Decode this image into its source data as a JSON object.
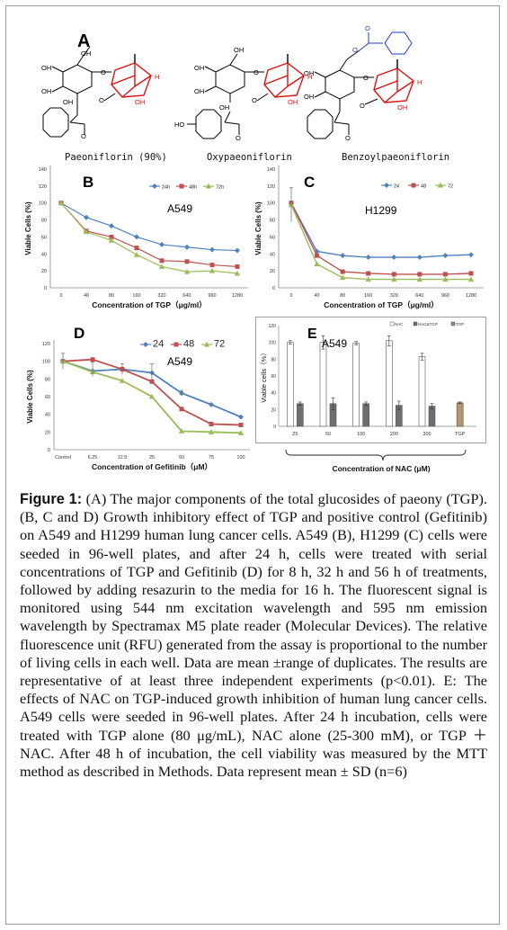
{
  "panelA": {
    "letter": "A",
    "compounds": [
      "Paeoniflorin (90%)",
      "Oxypaeoniflorin",
      "Benzoylpaeoniflorin"
    ],
    "atom_labels": {
      "oh": "OH",
      "ho": "HO",
      "o": "O",
      "h": "H"
    }
  },
  "chart_data": [
    {
      "id": "B",
      "type": "line",
      "letter": "B",
      "inset_label": "A549",
      "ylabel": "Viable Cells (%)",
      "xlabel": "Concentration of TGP（μg/ml）",
      "ylim": [
        0,
        140
      ],
      "yticks": [
        0,
        20,
        40,
        60,
        80,
        100,
        120,
        140
      ],
      "categories": [
        "0",
        "40",
        "80",
        "160",
        "320",
        "640",
        "960",
        "1280"
      ],
      "legend_position": "top-right",
      "series": [
        {
          "name": "24h",
          "color": "#4F81BD",
          "marker": "diamond",
          "values": [
            100,
            83,
            73,
            60,
            51,
            48,
            45,
            44
          ]
        },
        {
          "name": "48h",
          "color": "#C0504D",
          "marker": "square",
          "values": [
            100,
            67,
            60,
            47,
            32,
            31,
            27,
            25
          ]
        },
        {
          "name": "72h",
          "color": "#9BBB59",
          "marker": "triangle",
          "values": [
            100,
            66,
            56,
            39,
            25,
            19,
            20,
            17
          ]
        }
      ]
    },
    {
      "id": "C",
      "type": "line",
      "letter": "C",
      "inset_label": "H1299",
      "ylabel": "Viable Cells (%)",
      "xlabel": "Concentration of TGP（μg/ml）",
      "ylim": [
        0,
        140
      ],
      "yticks": [
        0,
        20,
        40,
        60,
        80,
        100,
        120,
        140
      ],
      "categories": [
        "0",
        "40",
        "80",
        "160",
        "320",
        "640",
        "960",
        "1280"
      ],
      "legend_position": "top-right",
      "series": [
        {
          "name": "24",
          "color": "#4F81BD",
          "marker": "diamond",
          "values": [
            100,
            43,
            38,
            36,
            36,
            36,
            38,
            39
          ]
        },
        {
          "name": "48",
          "color": "#C0504D",
          "marker": "square",
          "values": [
            100,
            38,
            19,
            17,
            16,
            16,
            16,
            17
          ]
        },
        {
          "name": "72",
          "color": "#9BBB59",
          "marker": "triangle",
          "values": [
            98,
            28,
            12,
            10,
            10,
            10,
            10,
            10
          ]
        }
      ]
    },
    {
      "id": "D",
      "type": "line",
      "letter": "D",
      "inset_label": "A549",
      "ylabel": "Viable Cells (%)",
      "xlabel": "Concentration of Gefitinib（μM）",
      "ylim": [
        0,
        120
      ],
      "yticks": [
        0,
        20,
        40,
        60,
        80,
        100,
        120
      ],
      "categories": [
        "Control",
        "6.25",
        "12.5",
        "25",
        "50",
        "75",
        "100"
      ],
      "legend_position": "top-right",
      "series": [
        {
          "name": "24",
          "color": "#4F81BD",
          "marker": "diamond",
          "values": [
            100,
            89,
            91,
            87,
            64,
            51,
            37
          ]
        },
        {
          "name": "48",
          "color": "#C0504D",
          "marker": "square",
          "values": [
            100,
            102,
            91,
            77,
            46,
            29,
            28
          ]
        },
        {
          "name": "72",
          "color": "#9BBB59",
          "marker": "triangle",
          "values": [
            100,
            88,
            78,
            60,
            21,
            20,
            19
          ]
        }
      ]
    },
    {
      "id": "E",
      "type": "bar",
      "letter": "E",
      "inset_label": "A549",
      "ylabel": "Viable cells（%）",
      "xlabel": "Concentration of NAC (μM)",
      "ylim": [
        0,
        120
      ],
      "yticks": [
        0,
        20,
        40,
        60,
        80,
        100,
        120
      ],
      "categories": [
        "25",
        "50",
        "100",
        "200",
        "300",
        "TGP"
      ],
      "legend_position": "top",
      "legend": [
        "NAC",
        "NAC&TGP",
        "TGP"
      ],
      "series": [
        {
          "name": "NAC",
          "color": "#ffffff",
          "values": [
            100,
            100,
            99,
            102,
            83,
            null
          ],
          "errors": [
            2,
            8,
            2,
            6,
            4,
            null
          ]
        },
        {
          "name": "NAC&TGP",
          "color": "#6e6e6e",
          "values": [
            27,
            27,
            27,
            25,
            24,
            null
          ],
          "errors": [
            2,
            7,
            2,
            5,
            3,
            null
          ]
        },
        {
          "name": "TGP",
          "color": "#b8956a",
          "values": [
            null,
            null,
            null,
            null,
            null,
            28
          ],
          "errors": [
            null,
            null,
            null,
            null,
            null,
            1
          ]
        }
      ]
    }
  ],
  "caption": {
    "label": "Figure 1:",
    "text": "(A) The major components of the total glucosides of paeony (TGP). (B, C and D) Growth inhibitory effect of TGP and positive control (Gefitinib) on A549 and H1299 human lung cancer cells. A549 (B), H1299 (C) cells were seeded in 96-well plates, and after 24 h, cells were treated with serial concentrations of TGP and Gefitinib (D) for 8 h, 32 h and 56 h of treatments, followed by adding resazurin to the media for 16 h. The fluorescent signal is monitored using 544 nm excitation wavelength and 595 nm emission wavelength by Spectramax M5 plate reader (Molecular Devices). The relative fluorescence unit (RFU) generated from the assay is proportional to the number of living cells in each well. Data are mean ±range of duplicates. The results are representative of at least three independent experiments (p<0.01). E: The effects of NAC on TGP-induced growth inhibition of human lung cancer cells. A549 cells were seeded in 96-well plates. After 24 h incubation, cells were treated with TGP alone (80 μg/mL), NAC alone (25-300 mM), or TGP ＋ NAC. After 48 h of incubation, the cell viability was measured by the MTT method as described in Methods. Data represent mean ± SD (n=6)"
  }
}
